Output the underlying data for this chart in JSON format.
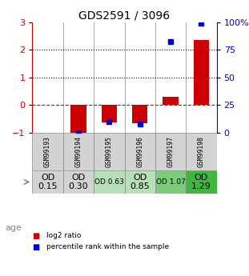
{
  "title": "GDS2591 / 3096",
  "samples": [
    "GSM99193",
    "GSM99194",
    "GSM99195",
    "GSM99196",
    "GSM99197",
    "GSM99198"
  ],
  "log2_ratio": [
    0.0,
    -1.0,
    -0.62,
    -0.65,
    0.3,
    2.35
  ],
  "percentile_rank": [
    null,
    0.0,
    10.0,
    8.0,
    82.0,
    99.0
  ],
  "od_values": [
    "OD\n0.15",
    "OD\n0.30",
    "OD 0.63",
    "OD\n0.85",
    "OD 1.07",
    "OD\n1.29"
  ],
  "od_bg_colors": [
    "#d3d3d3",
    "#d3d3d3",
    "#b8e0b8",
    "#b8e0b8",
    "#7acc7a",
    "#3db83d"
  ],
  "od_fontsize_large": 8,
  "od_fontsize_small": 6.5,
  "od_large": [
    true,
    true,
    false,
    true,
    false,
    true
  ],
  "ylim_left": [
    -1.0,
    3.0
  ],
  "ylim_right": [
    0,
    100
  ],
  "yticks_left": [
    -1,
    0,
    1,
    2,
    3
  ],
  "yticks_right": [
    0,
    25,
    50,
    75,
    100
  ],
  "bar_color_red": "#cc0000",
  "bar_color_blue": "#0000cc",
  "bg_color": "#ffffff",
  "zero_line_color": "#cc0000",
  "label_color_left": "#cc0000",
  "label_color_right": "#0000cc",
  "cell_edge_color": "#888888",
  "sample_bg_color": "#d3d3d3",
  "bar_width": 0.5
}
